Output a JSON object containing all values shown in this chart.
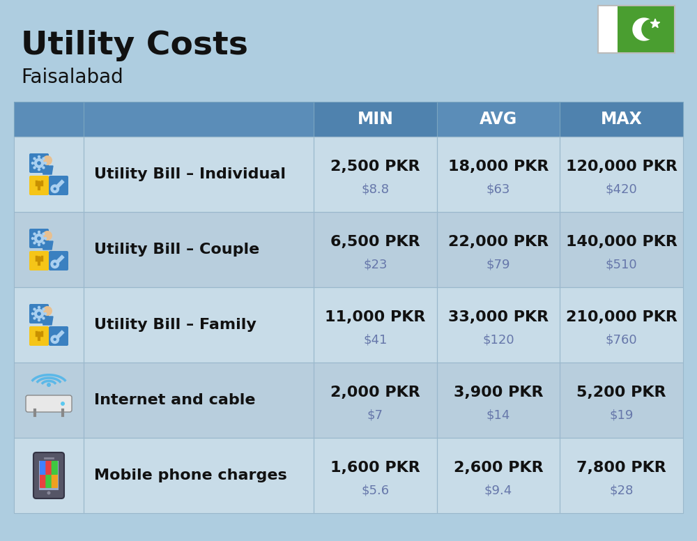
{
  "title": "Utility Costs",
  "subtitle": "Faisalabad",
  "background_color": "#aecde0",
  "header_bg_color": "#5b8db8",
  "header_text_color": "#ffffff",
  "row_bg_even": "#c8dce8",
  "row_bg_odd": "#b8cedd",
  "cell_border_color": "#9ab8cc",
  "columns": [
    "MIN",
    "AVG",
    "MAX"
  ],
  "rows": [
    {
      "label": "Utility Bill – Individual",
      "icon": "utility",
      "min_pkr": "2,500 PKR",
      "min_usd": "$8.8",
      "avg_pkr": "18,000 PKR",
      "avg_usd": "$63",
      "max_pkr": "120,000 PKR",
      "max_usd": "$420"
    },
    {
      "label": "Utility Bill – Couple",
      "icon": "utility",
      "min_pkr": "6,500 PKR",
      "min_usd": "$23",
      "avg_pkr": "22,000 PKR",
      "avg_usd": "$79",
      "max_pkr": "140,000 PKR",
      "max_usd": "$510"
    },
    {
      "label": "Utility Bill – Family",
      "icon": "utility",
      "min_pkr": "11,000 PKR",
      "min_usd": "$41",
      "avg_pkr": "33,000 PKR",
      "avg_usd": "$120",
      "max_pkr": "210,000 PKR",
      "max_usd": "$760"
    },
    {
      "label": "Internet and cable",
      "icon": "internet",
      "min_pkr": "2,000 PKR",
      "min_usd": "$7",
      "avg_pkr": "3,900 PKR",
      "avg_usd": "$14",
      "max_pkr": "5,200 PKR",
      "max_usd": "$19"
    },
    {
      "label": "Mobile phone charges",
      "icon": "mobile",
      "min_pkr": "1,600 PKR",
      "min_usd": "$5.6",
      "avg_pkr": "2,600 PKR",
      "avg_usd": "$9.4",
      "max_pkr": "7,800 PKR",
      "max_usd": "$28"
    }
  ],
  "title_fontsize": 34,
  "subtitle_fontsize": 20,
  "header_fontsize": 17,
  "label_fontsize": 16,
  "value_fontsize": 16,
  "usd_fontsize": 13
}
